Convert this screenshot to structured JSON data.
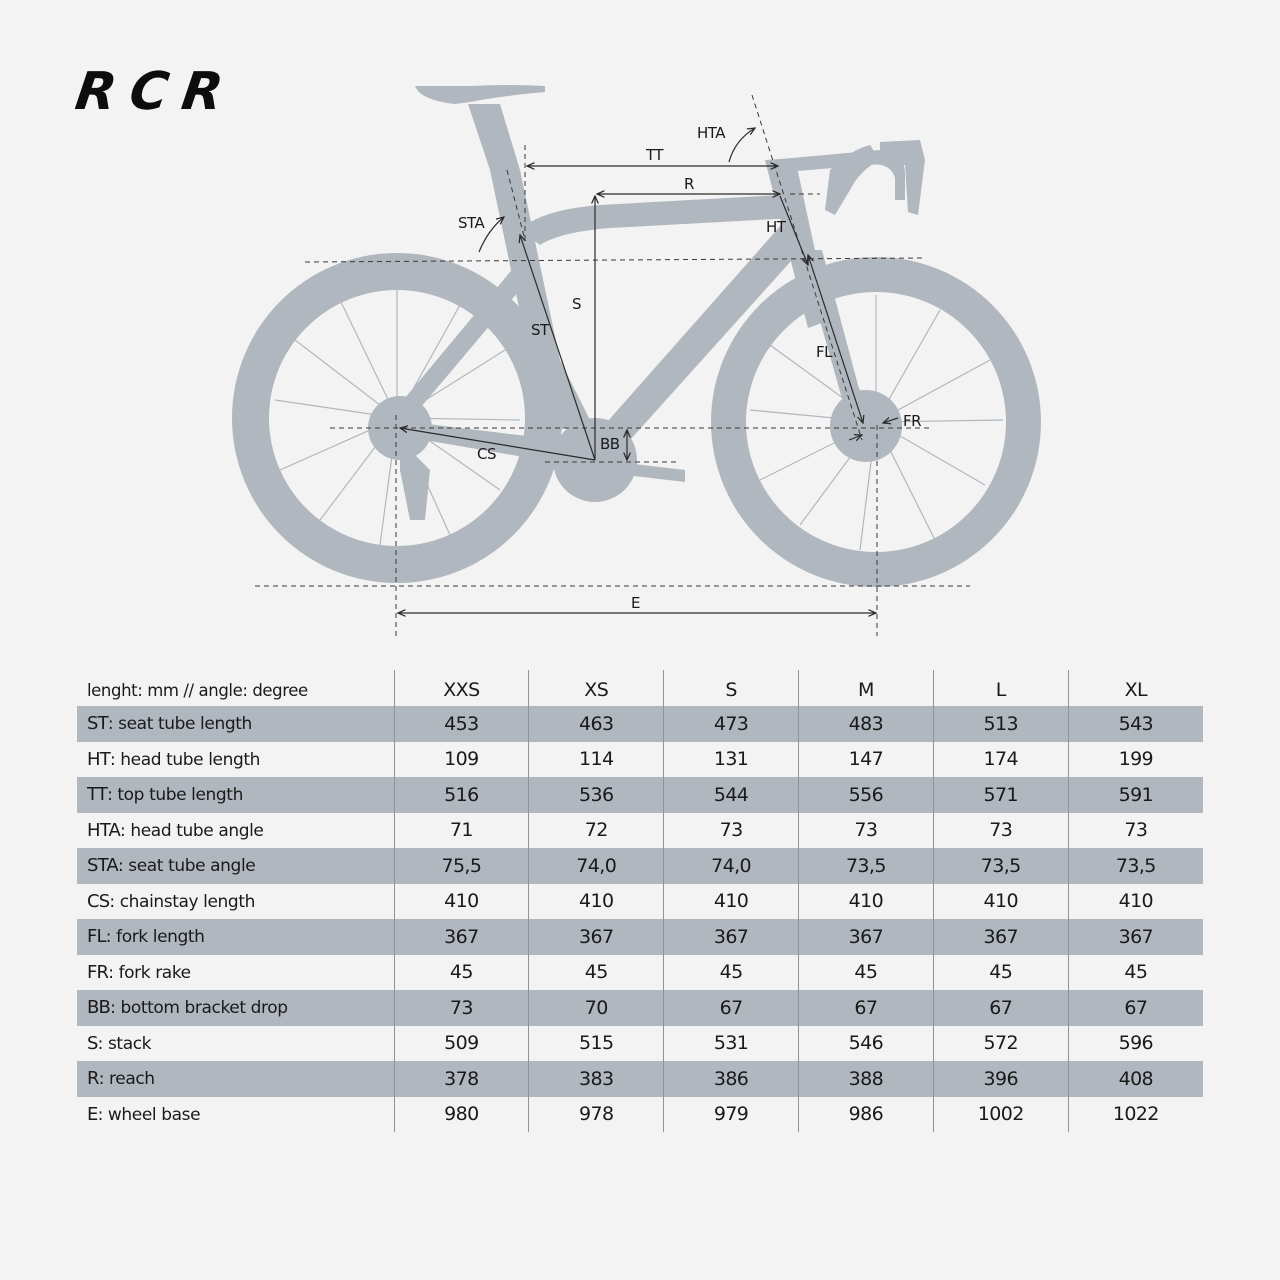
{
  "brand": {
    "title": "RCR"
  },
  "diagram": {
    "labels": {
      "tt": "TT",
      "r": "R",
      "hta": "HTA",
      "sta": "STA",
      "ht": "HT",
      "s": "S",
      "st": "ST",
      "fl": "FL",
      "fr": "FR",
      "bb": "BB",
      "cs": "CS",
      "e": "E"
    },
    "colors": {
      "bike": "#b1b7bf",
      "lines": "#2b2b2b",
      "background": "#f3f3f3"
    }
  },
  "table": {
    "unit_note": "lenght: mm // angle: degree",
    "sizes": [
      "XXS",
      "XS",
      "S",
      "M",
      "L",
      "XL"
    ],
    "rows": [
      {
        "abbr": "ST",
        "desc": ": seat tube length",
        "values": [
          "453",
          "463",
          "473",
          "483",
          "513",
          "543"
        ]
      },
      {
        "abbr": "HT",
        "desc": ": head tube length",
        "values": [
          "109",
          "114",
          "131",
          "147",
          "174",
          "199"
        ]
      },
      {
        "abbr": "TT",
        "desc": ": top tube length",
        "values": [
          "516",
          "536",
          "544",
          "556",
          "571",
          "591"
        ]
      },
      {
        "abbr": "HTA",
        "desc": ": head tube angle",
        "values": [
          "71",
          "72",
          "73",
          "73",
          "73",
          "73"
        ]
      },
      {
        "abbr": "STA",
        "desc": ": seat tube angle",
        "values": [
          "75,5",
          "74,0",
          "74,0",
          "73,5",
          "73,5",
          "73,5"
        ]
      },
      {
        "abbr": "CS",
        "desc": ": chainstay length",
        "values": [
          "410",
          "410",
          "410",
          "410",
          "410",
          "410"
        ]
      },
      {
        "abbr": "FL",
        "desc": ": fork length",
        "values": [
          "367",
          "367",
          "367",
          "367",
          "367",
          "367"
        ]
      },
      {
        "abbr": "FR",
        "desc": ": fork rake",
        "values": [
          "45",
          "45",
          "45",
          "45",
          "45",
          "45"
        ]
      },
      {
        "abbr": "BB",
        "desc": ": bottom bracket drop",
        "values": [
          "73",
          "70",
          "67",
          "67",
          "67",
          "67"
        ]
      },
      {
        "abbr": "S",
        "desc": ": stack",
        "values": [
          "509",
          "515",
          "531",
          "546",
          "572",
          "596"
        ]
      },
      {
        "abbr": "R",
        "desc": ": reach",
        "values": [
          "378",
          "383",
          "386",
          "388",
          "396",
          "408"
        ]
      },
      {
        "abbr": "E",
        "desc": ": wheel base",
        "values": [
          "980",
          "978",
          "979",
          "986",
          "1002",
          "1022"
        ]
      }
    ],
    "colors": {
      "stripe": "#b1b7bf",
      "divider": "#8e949a"
    }
  }
}
